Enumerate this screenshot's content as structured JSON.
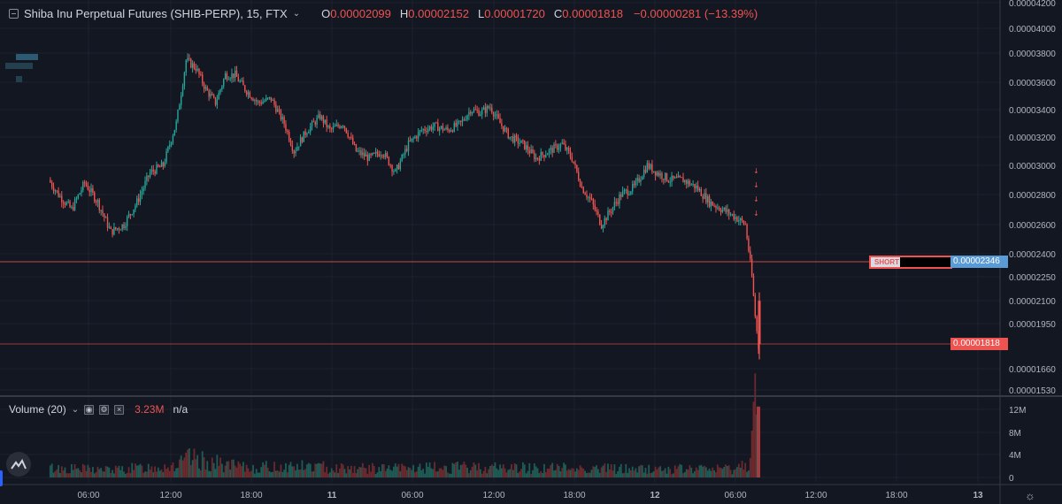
{
  "header": {
    "symbol": "Shiba Inu Perpetual Futures (SHIB-PERP), 15, FTX",
    "ohlc": {
      "open_key": "O",
      "open": "0.00002099",
      "high_key": "H",
      "high": "0.00002152",
      "low_key": "L",
      "low": "0.00001720",
      "close_key": "C",
      "close": "0.00001818"
    },
    "change": "−0.00000281 (−13.39%)"
  },
  "volume_legend": {
    "label": "Volume (20)",
    "value": "3.23M",
    "na": "n/a"
  },
  "price_axis": {
    "ticks": [
      "0.00004200",
      "0.00004000",
      "0.00003800",
      "0.00003600",
      "0.00003400",
      "0.00003200",
      "0.00003000",
      "0.00002800",
      "0.00002600",
      "0.00002400",
      "0.00002250",
      "0.00002100",
      "0.00001950",
      "0.00001660",
      "0.00001530"
    ],
    "tick_values": [
      4.2e-05,
      4e-05,
      3.8e-05,
      3.6e-05,
      3.4e-05,
      3.2e-05,
      3e-05,
      2.8e-05,
      2.6e-05,
      2.4e-05,
      2.25e-05,
      2.1e-05,
      1.95e-05,
      1.66e-05,
      1.53e-05
    ]
  },
  "price_tags": {
    "short_line_price": "0.00002346",
    "last_price": "0.00001818",
    "short_label": "SHORT"
  },
  "volume_axis": {
    "ticks": [
      "12M",
      "8M",
      "4M",
      "0"
    ],
    "tick_values": [
      12,
      8,
      4,
      0
    ]
  },
  "time_axis": {
    "labels": [
      "06:00",
      "12:00",
      "18:00",
      "11",
      "06:00",
      "12:00",
      "18:00",
      "12",
      "06:00",
      "12:00",
      "18:00",
      "13"
    ]
  },
  "colors": {
    "background": "#131722",
    "up": "#26a69a",
    "down": "#ef5350",
    "short_line": "#ef5350",
    "grid": "#1e2230",
    "accent_blue": "#2962ff"
  },
  "chart_data": {
    "type": "candlestick",
    "interval": "15",
    "exchange": "FTX",
    "price_scale": "1e-8 per unit",
    "close_path_waypoints": [
      [
        0,
        2900
      ],
      [
        6,
        2800
      ],
      [
        14,
        2700
      ],
      [
        22,
        2880
      ],
      [
        30,
        2750
      ],
      [
        38,
        2550
      ],
      [
        46,
        2600
      ],
      [
        54,
        2750
      ],
      [
        62,
        2950
      ],
      [
        70,
        3000
      ],
      [
        78,
        3300
      ],
      [
        84,
        3750
      ],
      [
        90,
        3700
      ],
      [
        96,
        3550
      ],
      [
        102,
        3450
      ],
      [
        108,
        3650
      ],
      [
        114,
        3650
      ],
      [
        120,
        3550
      ],
      [
        128,
        3450
      ],
      [
        136,
        3480
      ],
      [
        144,
        3300
      ],
      [
        150,
        3100
      ],
      [
        158,
        3250
      ],
      [
        166,
        3350
      ],
      [
        172,
        3250
      ],
      [
        180,
        3300
      ],
      [
        188,
        3100
      ],
      [
        196,
        3050
      ],
      [
        204,
        3100
      ],
      [
        212,
        2950
      ],
      [
        220,
        3150
      ],
      [
        228,
        3250
      ],
      [
        236,
        3280
      ],
      [
        244,
        3250
      ],
      [
        252,
        3300
      ],
      [
        258,
        3400
      ],
      [
        264,
        3380
      ],
      [
        270,
        3420
      ],
      [
        276,
        3300
      ],
      [
        282,
        3200
      ],
      [
        290,
        3150
      ],
      [
        298,
        3050
      ],
      [
        306,
        3100
      ],
      [
        314,
        3150
      ],
      [
        320,
        3050
      ],
      [
        326,
        2850
      ],
      [
        332,
        2750
      ],
      [
        338,
        2600
      ],
      [
        344,
        2700
      ],
      [
        350,
        2800
      ],
      [
        358,
        2850
      ],
      [
        366,
        3000
      ],
      [
        372,
        2950
      ],
      [
        380,
        2900
      ],
      [
        388,
        2900
      ],
      [
        396,
        2850
      ],
      [
        404,
        2750
      ],
      [
        412,
        2700
      ],
      [
        420,
        2650
      ],
      [
        426,
        2600
      ],
      [
        430,
        2250
      ],
      [
        432,
        2000
      ],
      [
        434,
        1800
      ]
    ],
    "volume_path_waypoints": [
      [
        0,
        1.5
      ],
      [
        40,
        1.2
      ],
      [
        80,
        2.0
      ],
      [
        85,
        3.0
      ],
      [
        120,
        1.5
      ],
      [
        150,
        1.8
      ],
      [
        200,
        1.4
      ],
      [
        260,
        1.6
      ],
      [
        320,
        1.5
      ],
      [
        380,
        1.3
      ],
      [
        420,
        1.4
      ],
      [
        428,
        2.5
      ],
      [
        430,
        7.0
      ],
      [
        432,
        12.0
      ],
      [
        434,
        3.2
      ]
    ]
  }
}
